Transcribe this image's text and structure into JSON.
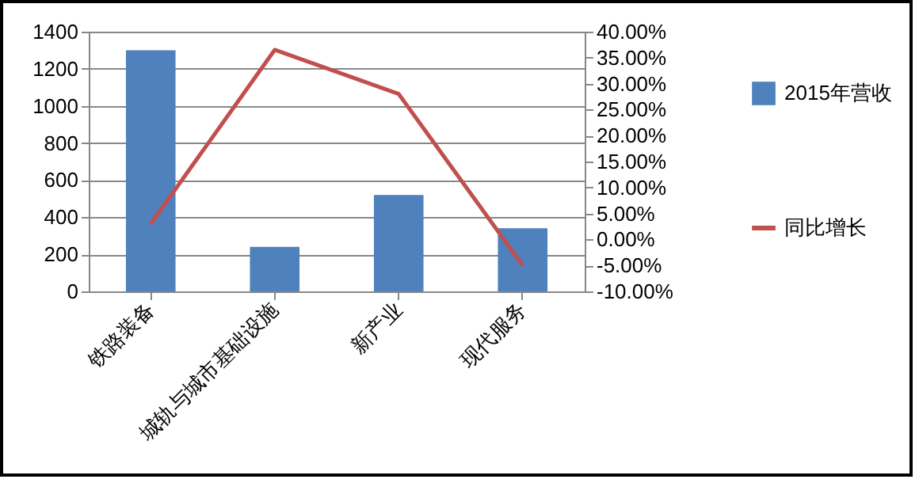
{
  "chart_data": {
    "type": "bar",
    "categories": [
      "铁路装备",
      "城轨与城市基础设施",
      "新产业",
      "现代服务"
    ],
    "series": [
      {
        "name": "2015年营收",
        "color": "#4f81bd",
        "values": [
          1300,
          240,
          520,
          340
        ]
      },
      {
        "name": "同比增长",
        "type": "line",
        "axis": "y2",
        "color": "#c0504d",
        "values": [
          3.0,
          36.5,
          28.0,
          -5.0
        ]
      }
    ],
    "ylim": [
      0,
      1400
    ],
    "yticks": [
      0,
      200,
      400,
      600,
      800,
      1000,
      1200,
      1400
    ],
    "y2lim": [
      -10,
      40
    ],
    "y2ticks": [
      {
        "value": -10,
        "label": "-10.00%"
      },
      {
        "value": -5,
        "label": "-5.00%"
      },
      {
        "value": 0,
        "label": "0.00%"
      },
      {
        "value": 5,
        "label": "5.00%"
      },
      {
        "value": 10,
        "label": "10.00%"
      },
      {
        "value": 15,
        "label": "15.00%"
      },
      {
        "value": 20,
        "label": "20.00%"
      },
      {
        "value": 25,
        "label": "25.00%"
      },
      {
        "value": 30,
        "label": "30.00%"
      },
      {
        "value": 35,
        "label": "35.00%"
      },
      {
        "value": 40,
        "label": "40.00%"
      }
    ],
    "grid": "y",
    "legend": "right",
    "line_style": "solid",
    "marker": "none"
  }
}
